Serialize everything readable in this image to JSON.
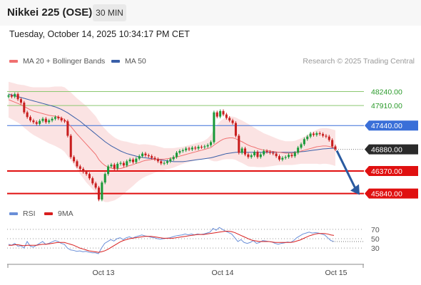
{
  "header": {
    "title": "Nikkei 225 (OSE)",
    "timeframe": "30 MIN"
  },
  "timestamp": "Tuesday, October 14, 2025 10:34:17 PM CET",
  "legend": {
    "ma20_bb": "MA 20 + Bollinger Bands",
    "ma50": "MA 50"
  },
  "copyright": "Research © 2025 Trading Central",
  "rsi_legend": {
    "rsi": "RSI",
    "ma9": "9MA"
  },
  "colors": {
    "up": "#1a9a3a",
    "down": "#c81e1e",
    "ma20": "#f07070",
    "ma50": "#3a5fa8",
    "band": "#fadcdc",
    "rsi": "#6a8fd8",
    "rsi_ma": "#d81e1e",
    "resistance": "#3a6fd8",
    "support": "#e01010",
    "green_level": "#8cc870",
    "current": "#2a2a2a",
    "arrow": "#2a5aa0"
  },
  "chart_data": [
    {
      "type": "candlestick",
      "ylim": [
        45700,
        48550
      ],
      "x_ticks": [
        "Oct 13",
        "Oct 14",
        "Oct 15"
      ],
      "levels": [
        {
          "label": "48240.00",
          "value": 48240,
          "kind": "green"
        },
        {
          "label": "47910.00",
          "value": 47910,
          "kind": "green"
        },
        {
          "label": "47440.00",
          "value": 47440,
          "kind": "resistance"
        },
        {
          "label": "46880.00",
          "value": 46880,
          "kind": "current"
        },
        {
          "label": "46370.00",
          "value": 46370,
          "kind": "support"
        },
        {
          "label": "45840.00",
          "value": 45840,
          "kind": "support"
        }
      ],
      "projection": {
        "from": 46850,
        "to": 45860,
        "direction": "down"
      },
      "closes": [
        48150,
        48120,
        48180,
        48060,
        47980,
        47750,
        47640,
        47560,
        47520,
        47480,
        47550,
        47600,
        47520,
        47560,
        47600,
        47640,
        47610,
        47560,
        47540,
        47200,
        46700,
        46600,
        46480,
        46420,
        46350,
        46300,
        46200,
        46080,
        45980,
        45700,
        46100,
        46300,
        46480,
        46520,
        46430,
        46540,
        46560,
        46500,
        46600,
        46640,
        46580,
        46660,
        46720,
        46780,
        46740,
        46720,
        46680,
        46650,
        46600,
        46550,
        46560,
        46600,
        46650,
        46700,
        46800,
        46840,
        46860,
        46900,
        46880,
        46920,
        46900,
        46940,
        46930,
        46950,
        46980,
        47050,
        47750,
        47650,
        47780,
        47700,
        47620,
        47560,
        47500,
        47200,
        46800,
        46900,
        46760,
        46700,
        46740,
        46820,
        46700,
        46760,
        46840,
        46820,
        46800,
        46780,
        46720,
        46640,
        46680,
        46700,
        46750,
        46720,
        46800,
        46920,
        47000,
        47120,
        47180,
        47250,
        47220,
        47260,
        47240,
        47200,
        47180,
        47100,
        46950,
        46880
      ],
      "ma20": [
        48050,
        48020,
        47990,
        47960,
        47930,
        47890,
        47850,
        47810,
        47780,
        47760,
        47740,
        47720,
        47700,
        47680,
        47670,
        47660,
        47640,
        47620,
        47580,
        47500,
        47420,
        47330,
        47240,
        47160,
        47080,
        47000,
        46920,
        46840,
        46760,
        46640,
        46560,
        46500,
        46460,
        46440,
        46420,
        46420,
        46430,
        46450,
        46480,
        46500,
        46520,
        46550,
        46570,
        46600,
        46620,
        46630,
        46640,
        46650,
        46650,
        46650,
        46650,
        46660,
        46670,
        46680,
        46700,
        46720,
        46740,
        46760,
        46780,
        46800,
        46820,
        46840,
        46860,
        46880,
        46900,
        46920,
        46980,
        47030,
        47080,
        47120,
        47140,
        47150,
        47150,
        47130,
        47090,
        47060,
        47020,
        46980,
        46950,
        46930,
        46900,
        46880,
        46860,
        46850,
        46840,
        46830,
        46820,
        46810,
        46800,
        46790,
        46790,
        46790,
        46800,
        46820,
        46840,
        46860,
        46880,
        46900,
        46920,
        46940,
        46950,
        46960,
        46960,
        46950,
        46930,
        46910
      ],
      "ma50": [
        48180,
        48160,
        48140,
        48120,
        48100,
        48080,
        48060,
        48040,
        48020,
        48000,
        47980,
        47960,
        47940,
        47920,
        47900,
        47880,
        47850,
        47820,
        47780,
        47740,
        47690,
        47640,
        47590,
        47540,
        47480,
        47420,
        47360,
        47300,
        47240,
        47180,
        47120,
        47060,
        47010,
        46960,
        46920,
        46880,
        46840,
        46810,
        46780,
        46760,
        46740,
        46720,
        46700,
        46690,
        46680,
        46670,
        46660,
        46650,
        46640,
        46630,
        46620,
        46610,
        46600,
        46590,
        46590,
        46590,
        46590,
        46600,
        46610,
        46620,
        46630,
        46640,
        46650,
        46660,
        46670,
        46680,
        46700,
        46720,
        46740,
        46760,
        46780,
        46790,
        46800,
        46810,
        46810,
        46810,
        46810,
        46810,
        46810,
        46810,
        46810,
        46810,
        46810,
        46810,
        46810,
        46810,
        46810,
        46810,
        46810,
        46810,
        46810,
        46810,
        46815,
        46820,
        46825,
        46830,
        46840,
        46850,
        46860,
        46870,
        46880,
        46890,
        46895,
        46900,
        46905,
        46910
      ],
      "bb_width": [
        420,
        430,
        440,
        450,
        470,
        500,
        520,
        540,
        560,
        580,
        600,
        620,
        640,
        660,
        680,
        700,
        720,
        740,
        760,
        780,
        800,
        820,
        840,
        860,
        880,
        900,
        900,
        900,
        900,
        900,
        880,
        860,
        820,
        780,
        740,
        700,
        660,
        620,
        580,
        540,
        500,
        460,
        420,
        400,
        380,
        360,
        340,
        320,
        300,
        280,
        260,
        250,
        240,
        230,
        220,
        210,
        200,
        200,
        200,
        200,
        200,
        200,
        200,
        210,
        240,
        300,
        380,
        430,
        460,
        480,
        490,
        500,
        500,
        500,
        500,
        500,
        500,
        500,
        480,
        460,
        440,
        420,
        400,
        380,
        360,
        340,
        320,
        300,
        290,
        280,
        280,
        280,
        280,
        290,
        300,
        320,
        340,
        360,
        380,
        400,
        420,
        420,
        420,
        420,
        420,
        420
      ]
    },
    {
      "type": "line",
      "ylim": [
        15,
        85
      ],
      "y_ticks": [
        "70",
        "50",
        "30"
      ],
      "rsi": [
        38,
        36,
        40,
        34,
        35,
        30,
        44,
        34,
        32,
        36,
        40,
        44,
        38,
        40,
        43,
        46,
        44,
        40,
        38,
        30,
        26,
        25,
        23,
        24,
        22,
        23,
        21,
        20,
        20,
        18,
        30,
        40,
        44,
        48,
        45,
        50,
        52,
        48,
        52,
        54,
        51,
        54,
        56,
        58,
        56,
        55,
        53,
        52,
        50,
        49,
        50,
        51,
        52,
        54,
        56,
        57,
        58,
        60,
        58,
        60,
        58,
        60,
        59,
        60,
        62,
        64,
        72,
        68,
        74,
        70,
        66,
        63,
        60,
        52,
        44,
        48,
        42,
        40,
        42,
        46,
        40,
        42,
        46,
        45,
        44,
        43,
        40,
        38,
        40,
        41,
        43,
        42,
        46,
        52,
        56,
        60,
        62,
        64,
        62,
        63,
        62,
        60,
        58,
        52,
        46,
        44
      ],
      "rsi_ma": [
        36,
        36,
        37,
        37,
        36,
        35,
        36,
        36,
        36,
        36,
        37,
        38,
        38,
        39,
        40,
        41,
        42,
        42,
        42,
        40,
        38,
        36,
        33,
        30,
        28,
        26,
        24,
        23,
        22,
        21,
        22,
        24,
        27,
        31,
        35,
        39,
        43,
        46,
        48,
        50,
        51,
        52,
        53,
        54,
        55,
        55,
        55,
        54,
        53,
        52,
        51,
        51,
        51,
        51,
        52,
        53,
        54,
        55,
        56,
        57,
        58,
        59,
        59,
        59,
        60,
        61,
        62,
        63,
        64,
        65,
        66,
        66,
        65,
        63,
        60,
        57,
        54,
        51,
        48,
        46,
        45,
        44,
        44,
        44,
        44,
        43,
        42,
        42,
        42,
        42,
        42,
        42,
        43,
        45,
        47,
        50,
        53,
        56,
        58,
        60,
        61,
        61,
        61,
        60,
        58,
        57
      ]
    }
  ]
}
